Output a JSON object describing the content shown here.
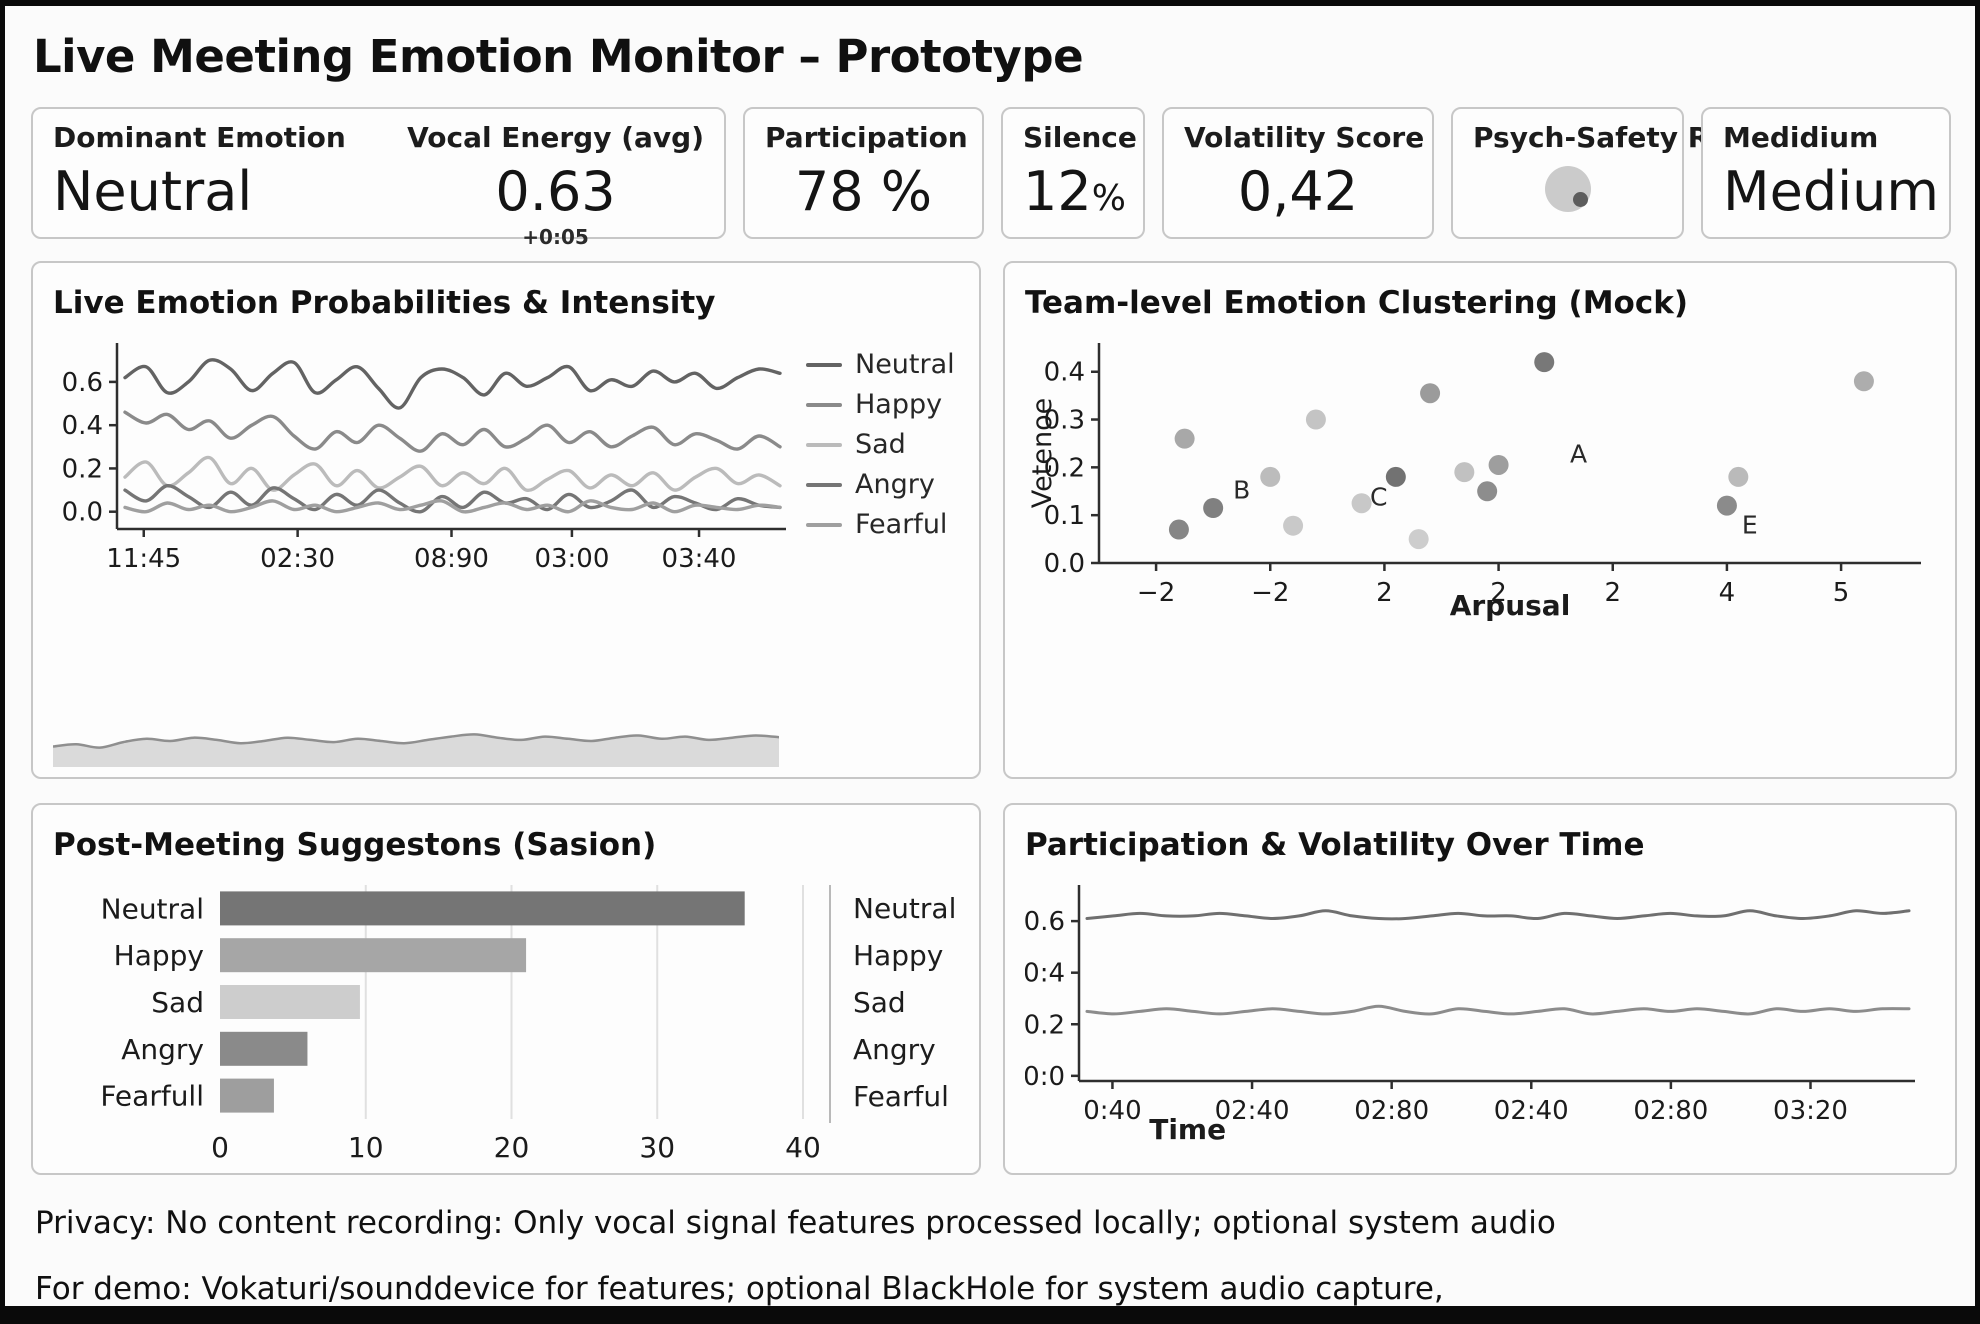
{
  "header": {
    "title": "Live Meeting Emotion Monitor – Prototype"
  },
  "kpis": {
    "dominant": {
      "label": "Dominant Emotion",
      "value": "Neutral"
    },
    "vocal": {
      "label": "Vocal Energy (avg)",
      "value": "0.63",
      "delta": "+0:05"
    },
    "participation": {
      "label": "Participation",
      "value": "78 %"
    },
    "silence": {
      "label": "Silence",
      "value": "12",
      "suffix": "%"
    },
    "volatility": {
      "label": "Volatility Score",
      "value": "0,42"
    },
    "risk": {
      "label": "Psych-Safety Risk",
      "icon": "risk-gauge-icon"
    },
    "medium": {
      "label": "Medidium",
      "value": "Medium"
    }
  },
  "footer": {
    "line1": "Privacy: No content recording: Only vocal signal features processed locally; optional system audio",
    "line2": "For demo: Vokaturi/sounddevice for features; optional BlackHole for system audio capture,"
  },
  "chart_data": [
    {
      "id": "emotion-lines",
      "type": "line",
      "title": "Live Emotion Probabilities & Intensity",
      "x_ticks": [
        "11:45",
        "02:30",
        "08:90",
        "03:00",
        "03:40"
      ],
      "y_tick_values": [
        0.0,
        0.2,
        0.4,
        0.6
      ],
      "y_tick_labels": [
        "0.0",
        "0.2",
        "0.4",
        "0.6"
      ],
      "ylim": [
        -0.08,
        0.78
      ],
      "legend": [
        "Neutral",
        "Happy",
        "Sad",
        "Angry",
        "Fearful"
      ],
      "legend_position": "right",
      "grid": false,
      "series": [
        {
          "name": "Neutral",
          "color": "#636363",
          "values": [
            0.62,
            0.67,
            0.55,
            0.6,
            0.7,
            0.66,
            0.56,
            0.64,
            0.69,
            0.55,
            0.61,
            0.67,
            0.57,
            0.48,
            0.62,
            0.66,
            0.62,
            0.54,
            0.64,
            0.58,
            0.62,
            0.67,
            0.56,
            0.61,
            0.58,
            0.65,
            0.6,
            0.64,
            0.57,
            0.62,
            0.66,
            0.64
          ]
        },
        {
          "name": "Happy",
          "color": "#8a8a8a",
          "values": [
            0.46,
            0.41,
            0.45,
            0.38,
            0.42,
            0.34,
            0.4,
            0.44,
            0.35,
            0.29,
            0.37,
            0.32,
            0.4,
            0.34,
            0.28,
            0.36,
            0.31,
            0.38,
            0.3,
            0.34,
            0.4,
            0.32,
            0.37,
            0.3,
            0.35,
            0.39,
            0.31,
            0.36,
            0.33,
            0.29,
            0.35,
            0.3
          ]
        },
        {
          "name": "Sad",
          "color": "#bbbbbb",
          "values": [
            0.16,
            0.23,
            0.12,
            0.18,
            0.25,
            0.13,
            0.2,
            0.1,
            0.17,
            0.22,
            0.12,
            0.19,
            0.11,
            0.16,
            0.21,
            0.12,
            0.18,
            0.13,
            0.2,
            0.1,
            0.15,
            0.19,
            0.11,
            0.17,
            0.12,
            0.18,
            0.1,
            0.16,
            0.2,
            0.13,
            0.17,
            0.12
          ]
        },
        {
          "name": "Angry",
          "color": "#757575",
          "values": [
            0.1,
            0.05,
            0.12,
            0.07,
            0.02,
            0.09,
            0.03,
            0.11,
            0.06,
            0.01,
            0.08,
            0.03,
            0.1,
            0.04,
            0.0,
            0.07,
            0.02,
            0.09,
            0.04,
            0.06,
            0.01,
            0.08,
            0.02,
            0.05,
            0.1,
            0.02,
            0.07,
            0.04,
            0.01,
            0.06,
            0.03,
            0.02
          ]
        },
        {
          "name": "Fearful",
          "color": "#9f9f9f",
          "values": [
            0.02,
            0.0,
            0.04,
            0.01,
            0.03,
            0.0,
            0.02,
            0.05,
            0.01,
            0.03,
            0.0,
            0.02,
            0.04,
            0.01,
            0.03,
            0.05,
            0.0,
            0.02,
            0.04,
            0.01,
            0.03,
            0.0,
            0.05,
            0.02,
            0.01,
            0.04,
            0.0,
            0.03,
            0.02,
            0.01,
            0.03,
            0.02
          ]
        }
      ],
      "sparkline": {
        "color": "#8f8f8f",
        "fill": "#dadada",
        "values": [
          0.3,
          0.34,
          0.28,
          0.38,
          0.44,
          0.4,
          0.46,
          0.42,
          0.36,
          0.4,
          0.46,
          0.42,
          0.38,
          0.44,
          0.4,
          0.36,
          0.42,
          0.48,
          0.52,
          0.46,
          0.42,
          0.48,
          0.44,
          0.4,
          0.46,
          0.5,
          0.44,
          0.48,
          0.42,
          0.46,
          0.5,
          0.47
        ]
      }
    },
    {
      "id": "clustering-scatter",
      "type": "scatter",
      "title": "Team-level Emotion Clustering (Mock)",
      "xlabel": "Arpusal",
      "ylabel": "Vetenoe",
      "xlim": [
        0,
        7.2
      ],
      "ylim": [
        0,
        0.46
      ],
      "x_tick_pos": [
        0.5,
        1.5,
        2.5,
        3.5,
        4.5,
        5.5,
        6.5
      ],
      "x_tick_labels": [
        "−2",
        "−2",
        "2",
        "2",
        "2",
        "4",
        "5"
      ],
      "y_tick_values": [
        0.0,
        0.1,
        0.2,
        0.3,
        0.4
      ],
      "y_tick_labels": [
        "0.0",
        "0.1",
        "0.2",
        "0.3",
        "0.4"
      ],
      "points": [
        {
          "x": 0.75,
          "y": 0.26,
          "c": "#9c9c9c"
        },
        {
          "x": 1.0,
          "y": 0.115,
          "c": "#6e6e6e"
        },
        {
          "x": 0.7,
          "y": 0.07,
          "c": "#757575"
        },
        {
          "x": 1.5,
          "y": 0.18,
          "c": "#b3b3b3"
        },
        {
          "x": 1.9,
          "y": 0.3,
          "c": "#bcbcbc"
        },
        {
          "x": 1.7,
          "y": 0.078,
          "c": "#c2c2c2"
        },
        {
          "x": 2.3,
          "y": 0.125,
          "c": "#c0c0c0"
        },
        {
          "x": 2.6,
          "y": 0.18,
          "c": "#5f5f5f"
        },
        {
          "x": 2.9,
          "y": 0.355,
          "c": "#8d8d8d"
        },
        {
          "x": 3.2,
          "y": 0.19,
          "c": "#b8b8b8"
        },
        {
          "x": 3.4,
          "y": 0.15,
          "c": "#7d7d7d"
        },
        {
          "x": 2.8,
          "y": 0.05,
          "c": "#c6c6c6"
        },
        {
          "x": 3.5,
          "y": 0.205,
          "c": "#919191"
        },
        {
          "x": 3.9,
          "y": 0.42,
          "c": "#656565"
        },
        {
          "x": 5.6,
          "y": 0.18,
          "c": "#b0b0b0"
        },
        {
          "x": 5.5,
          "y": 0.12,
          "c": "#7b7b7b"
        },
        {
          "x": 6.7,
          "y": 0.38,
          "c": "#a2a2a2"
        }
      ],
      "cluster_labels": [
        {
          "text": "A",
          "x": 4.2,
          "y": 0.21
        },
        {
          "text": "B",
          "x": 1.25,
          "y": 0.135
        },
        {
          "text": "C",
          "x": 2.45,
          "y": 0.12
        },
        {
          "text": "E",
          "x": 5.7,
          "y": 0.062
        }
      ]
    },
    {
      "id": "suggestions-bars",
      "type": "bar",
      "title": "Post-Meeting Suggestons (Sasion)",
      "categories": [
        "Neutral",
        "Happy",
        "Sad",
        "Angry",
        "Fearfull"
      ],
      "values": [
        36,
        21,
        9.6,
        6,
        3.7
      ],
      "colors": [
        "#757575",
        "#a6a6a6",
        "#cdcdcd",
        "#8a8a8a",
        "#9e9e9e"
      ],
      "x_ticks": [
        0,
        10,
        20,
        30,
        40
      ],
      "xlim": [
        0,
        40
      ],
      "right_labels": [
        "Neutral",
        "Happy",
        "Sad",
        "Angry",
        "Fearful"
      ]
    },
    {
      "id": "participation-volatility",
      "type": "line",
      "title": "Participation & Volatility Over Time",
      "xlabel": "Time",
      "x_ticks": [
        "0:40",
        "02:40",
        "02:80",
        "02:40",
        "02:80",
        "03:20"
      ],
      "y_tick_values": [
        0.0,
        0.2,
        0.4,
        0.6
      ],
      "y_tick_labels": [
        "0:0",
        "0.2",
        "0:4",
        "0.6"
      ],
      "ylim": [
        -0.02,
        0.74
      ],
      "grid": false,
      "series": [
        {
          "name": "Participation",
          "color": "#6f6f6f",
          "values": [
            0.61,
            0.62,
            0.63,
            0.62,
            0.62,
            0.63,
            0.62,
            0.61,
            0.62,
            0.64,
            0.62,
            0.61,
            0.61,
            0.62,
            0.63,
            0.62,
            0.62,
            0.61,
            0.63,
            0.62,
            0.61,
            0.62,
            0.63,
            0.62,
            0.62,
            0.64,
            0.62,
            0.61,
            0.62,
            0.64,
            0.63,
            0.64
          ]
        },
        {
          "name": "Volatility",
          "color": "#8c8c8c",
          "values": [
            0.25,
            0.24,
            0.25,
            0.26,
            0.25,
            0.24,
            0.25,
            0.26,
            0.25,
            0.24,
            0.25,
            0.27,
            0.25,
            0.24,
            0.26,
            0.25,
            0.24,
            0.25,
            0.26,
            0.24,
            0.25,
            0.26,
            0.25,
            0.26,
            0.25,
            0.24,
            0.26,
            0.25,
            0.26,
            0.25,
            0.26,
            0.26
          ]
        }
      ]
    }
  ]
}
